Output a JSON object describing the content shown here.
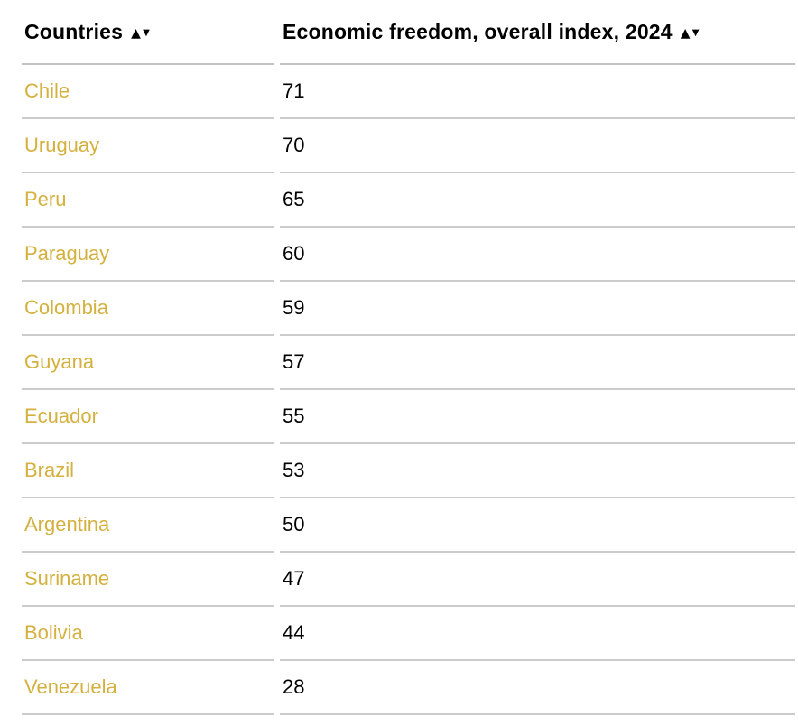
{
  "table": {
    "header": {
      "columns": [
        {
          "label": "Countries"
        },
        {
          "label": "Economic freedom, overall index, 2024"
        }
      ]
    },
    "sort_icons": {
      "up": "▲",
      "down": "▼"
    },
    "rows": [
      {
        "country": "Chile",
        "value": "71"
      },
      {
        "country": "Uruguay",
        "value": "70"
      },
      {
        "country": "Peru",
        "value": "65"
      },
      {
        "country": "Paraguay",
        "value": "60"
      },
      {
        "country": "Colombia",
        "value": "59"
      },
      {
        "country": "Guyana",
        "value": "57"
      },
      {
        "country": "Ecuador",
        "value": "55"
      },
      {
        "country": "Brazil",
        "value": "53"
      },
      {
        "country": "Argentina",
        "value": "50"
      },
      {
        "country": "Suriname",
        "value": "47"
      },
      {
        "country": "Bolivia",
        "value": "44"
      },
      {
        "country": "Venezuela",
        "value": "28"
      }
    ]
  },
  "colors": {
    "country_link_gold": "#d4b13e",
    "header_divider": "#c3c3c3",
    "row_divider": "#cbcbcb",
    "header_text": "#000000",
    "value_text": "#000000",
    "background": "#ffffff"
  },
  "chart_data": {
    "type": "table",
    "title": "Economic freedom, overall index, 2024",
    "columns": [
      "Countries",
      "Economic freedom, overall index, 2024"
    ],
    "categories": [
      "Chile",
      "Uruguay",
      "Peru",
      "Paraguay",
      "Colombia",
      "Guyana",
      "Ecuador",
      "Brazil",
      "Argentina",
      "Suriname",
      "Bolivia",
      "Venezuela"
    ],
    "values": [
      71,
      70,
      65,
      60,
      59,
      57,
      55,
      53,
      50,
      47,
      44,
      28
    ],
    "sortable_columns": true,
    "sort_order": "value descending"
  }
}
